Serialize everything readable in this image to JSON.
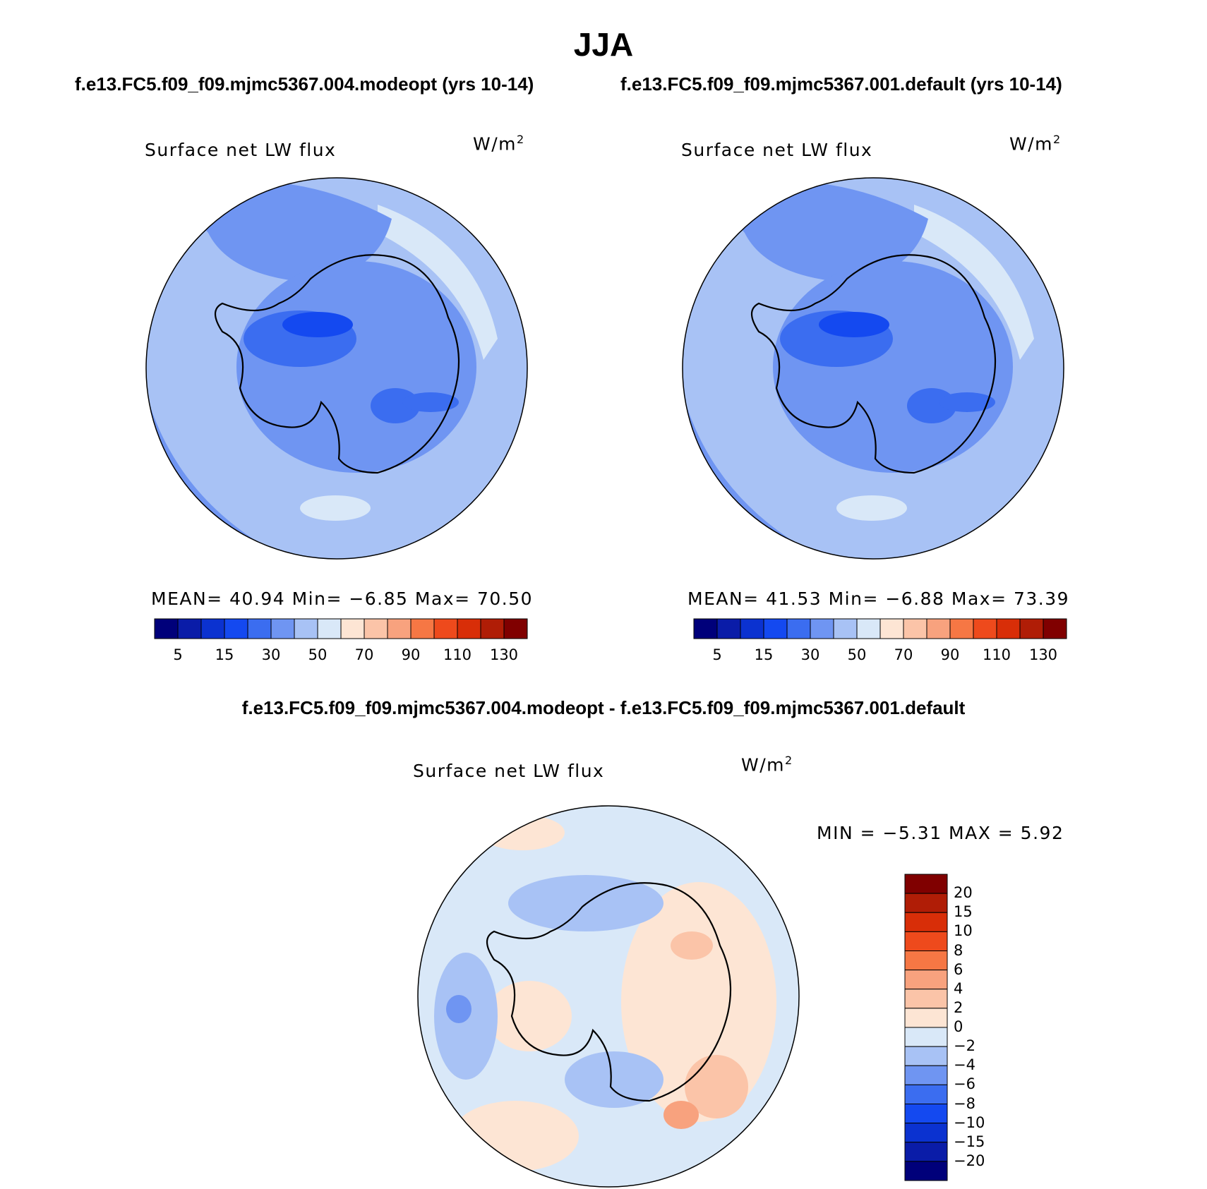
{
  "title": "JJA",
  "case_titles": [
    "f.e13.FC5.f09_f09.mjmc5367.004.modeopt (yrs 10-14)",
    "f.e13.FC5.f09_f09.mjmc5367.001.default (yrs 10-14)"
  ],
  "diff_title": "f.e13.FC5.f09_f09.mjmc5367.004.modeopt - f.e13.FC5.f09_f09.mjmc5367.001.default",
  "panels": [
    {
      "label": "Surface net LW flux",
      "unit": "W/m",
      "unit_sup": "2",
      "stats": "MEAN=   40.94   Min=   −6.85   Max=   70.50"
    },
    {
      "label": "Surface net LW flux",
      "unit": "W/m",
      "unit_sup": "2",
      "stats": "MEAN=   41.53   Min=   −6.88   Max=   73.39"
    },
    {
      "label": "Surface net LW flux",
      "unit": "W/m",
      "unit_sup": "2",
      "stats": "MIN =   −5.31  MAX =     5.92"
    }
  ],
  "colorbar_abs": {
    "tick_labels": [
      "5",
      "15",
      "30",
      "50",
      "70",
      "90",
      "110",
      "130"
    ],
    "colors": [
      "#00007a",
      "#0a1ca8",
      "#0b32d0",
      "#1449f0",
      "#3b6df0",
      "#6f95f2",
      "#a8c2f5",
      "#d9e8f8",
      "#fde5d4",
      "#fbc4a8",
      "#f8a27e",
      "#f67744",
      "#ee4a1c",
      "#d82e08",
      "#b01d06",
      "#800000"
    ]
  },
  "colorbar_diff": {
    "tick_labels": [
      "20",
      "15",
      "10",
      "8",
      "6",
      "4",
      "2",
      "0",
      "−2",
      "−4",
      "−6",
      "−8",
      "−10",
      "−15",
      "−20"
    ],
    "colors": [
      "#800000",
      "#b01d06",
      "#d82e08",
      "#ee4a1c",
      "#f67744",
      "#f8a27e",
      "#fbc4a8",
      "#fde5d4",
      "#d9e8f8",
      "#a8c2f5",
      "#6f95f2",
      "#3b6df0",
      "#1449f0",
      "#0b32d0",
      "#0a1ca8",
      "#00007a"
    ]
  },
  "map_colors": {
    "abs_base": "#a8c2f5",
    "abs_mid": "#6f95f2",
    "abs_dark": "#3b6df0",
    "abs_darker": "#1449f0",
    "abs_light": "#d9e8f8",
    "diff_base": "#d9e8f8",
    "diff_neg": "#a8c2f5",
    "diff_neg2": "#6f95f2",
    "diff_pos": "#fde5d4",
    "diff_pos2": "#fbc4a8",
    "diff_pos3": "#f8a27e"
  }
}
